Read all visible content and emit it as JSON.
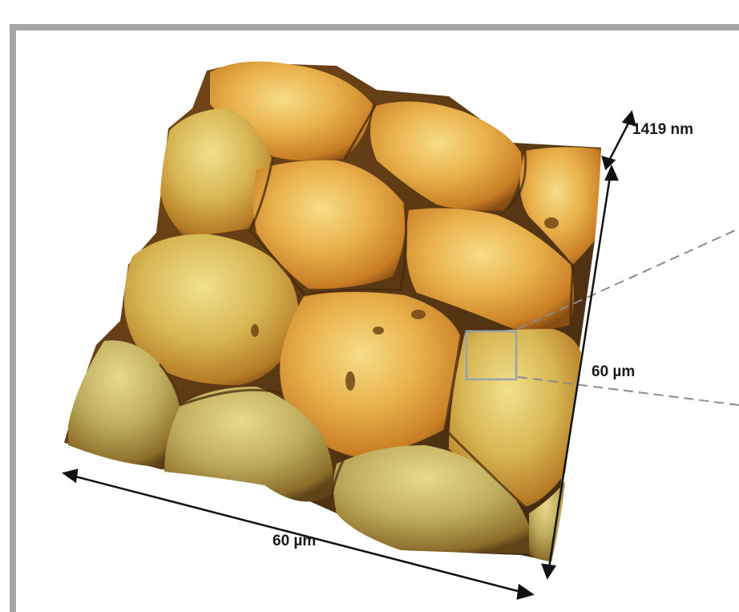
{
  "image": {
    "subject": "3D surface topography of a honeycomb-like array of rounded cells",
    "palette": {
      "highlight": "#f4d77a",
      "mid": "#dfa23c",
      "shadow": "#7d4a16",
      "olive": "#b0a25a",
      "frame": "#a6a6a6"
    }
  },
  "dimensions": {
    "height_label": "1419 nm",
    "side_label": "60 µm",
    "bottom_label": "60 µm"
  }
}
